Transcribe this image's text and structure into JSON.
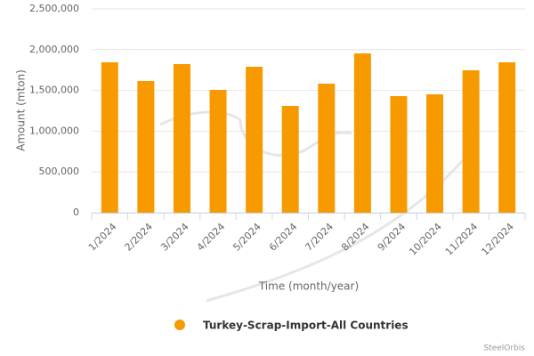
{
  "chart_data": {
    "type": "bar",
    "categories": [
      "1/2024",
      "2/2024",
      "3/2024",
      "4/2024",
      "5/2024",
      "6/2024",
      "7/2024",
      "8/2024",
      "9/2024",
      "10/2024",
      "11/2024",
      "12/2024"
    ],
    "series": [
      {
        "name": "Turkey-Scrap-Import-All Countries",
        "color": "#f79a00",
        "values": [
          1845000,
          1616000,
          1823000,
          1507000,
          1790000,
          1310000,
          1583000,
          1954000,
          1430000,
          1452000,
          1747000,
          1845000
        ]
      }
    ],
    "ylim": [
      0,
      2500000
    ],
    "yticks": [
      0,
      {
        "value": 500000,
        "label": "500,000"
      },
      {
        "value": 1000000,
        "label": "1,000,000"
      },
      {
        "value": 1500000,
        "label": "1,500,000"
      },
      {
        "value": 2000000,
        "label": "2,000,000"
      },
      {
        "value": 2500000,
        "label": "2,500,000"
      }
    ],
    "y_label": "Amount (mton)",
    "x_label": "Time (month/year)",
    "credit": "SteelOrbis",
    "grid": true
  }
}
